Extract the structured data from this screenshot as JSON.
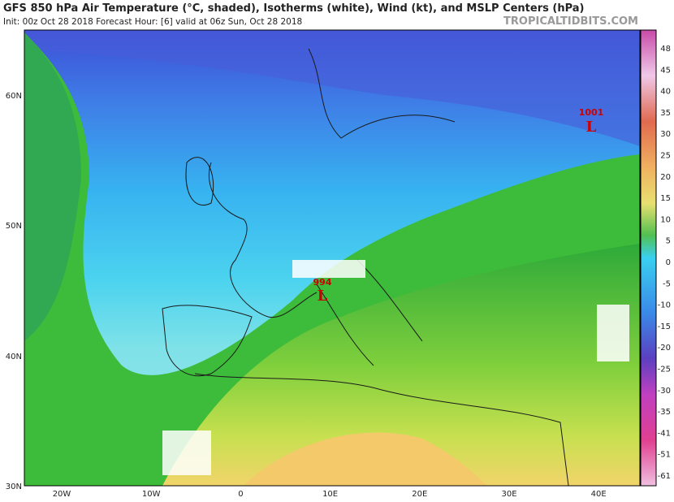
{
  "header": {
    "title": "GFS 850 hPa Air Temperature (°C, shaded), Isotherms (white), Wind (kt), and MSLP Centers (hPa)",
    "subtitle": "Init: 00z Oct 28 2018   Forecast Hour: [6]   valid at 06z Sun, Oct 28 2018",
    "watermark": "TROPICALTIDBITS.COM"
  },
  "map": {
    "lat_labels": [
      "60N",
      "50N",
      "40N",
      "30N"
    ],
    "lon_labels": [
      "20W",
      "10W",
      "0",
      "10E",
      "20E",
      "30E",
      "40E"
    ],
    "centers": [
      {
        "pressure": "994",
        "symbol": "L"
      },
      {
        "pressure": "1001",
        "symbol": "L"
      }
    ]
  },
  "colorbar": {
    "labels": [
      "48",
      "45",
      "40",
      "35",
      "30",
      "25",
      "20",
      "15",
      "10",
      "5",
      "0",
      "-5",
      "-10",
      "-15",
      "-20",
      "-25",
      "-30",
      "-35",
      "-41",
      "-51",
      "-61"
    ]
  }
}
